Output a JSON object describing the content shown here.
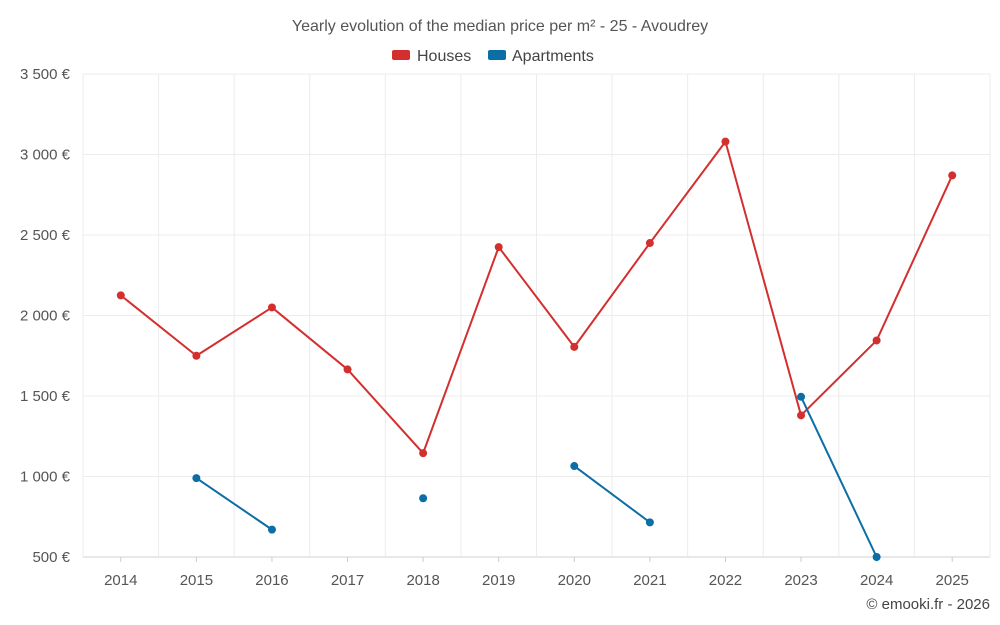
{
  "chart_data": {
    "type": "line",
    "title": "Yearly evolution of the median price per m² - 25 - Avoudrey",
    "x": [
      2014,
      2015,
      2016,
      2017,
      2018,
      2019,
      2020,
      2021,
      2022,
      2023,
      2024,
      2025
    ],
    "xticklabels": [
      "2014",
      "2015",
      "2016",
      "2017",
      "2018",
      "2019",
      "2020",
      "2021",
      "2022",
      "2023",
      "2024",
      "2025"
    ],
    "ylim": [
      500,
      3500
    ],
    "yticks": [
      500,
      1000,
      1500,
      2000,
      2500,
      3000,
      3500
    ],
    "yticklabels": [
      "500 €",
      "1 000 €",
      "1 500 €",
      "2 000 €",
      "2 500 €",
      "3 000 €",
      "3 500 €"
    ],
    "xlabel": "",
    "ylabel": "",
    "grid": true,
    "legend_position": "top-center",
    "series": [
      {
        "name": "Houses",
        "color": "#d32f2f",
        "values": [
          2125,
          1750,
          2050,
          1665,
          1145,
          2425,
          1805,
          2450,
          3080,
          1380,
          1845,
          2870
        ]
      },
      {
        "name": "Apartments",
        "color": "#0b6ea5",
        "values": [
          null,
          990,
          670,
          null,
          865,
          null,
          1065,
          715,
          null,
          1495,
          500,
          null
        ]
      }
    ],
    "credit": "© emooki.fr - 2026"
  }
}
